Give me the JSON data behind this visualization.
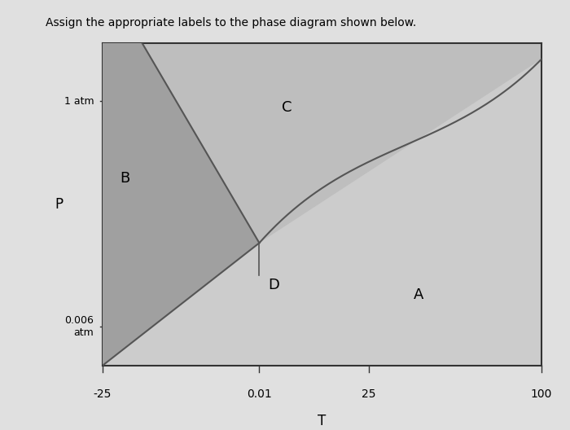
{
  "title": "Assign the appropriate labels to the phase diagram shown below.",
  "xlabel": "T",
  "ylabel": "P",
  "x_tick_labels": [
    "-25",
    "0.01",
    "25",
    "100"
  ],
  "y_left_labels": [
    "1 atm",
    "0.006\natm"
  ],
  "fig_bg_color": "#e0e0e0",
  "plot_bg_color": "#d4d4d4",
  "solid_color": "#a8a8a8",
  "liquid_color": "#c2c2c2",
  "gas_color": "#d0d0d0",
  "line_color": "#555555",
  "box_color": "#333333",
  "label_A": "A",
  "label_B": "B",
  "label_C": "C",
  "label_D": "D",
  "title_fontsize": 10,
  "label_fontsize": 13
}
